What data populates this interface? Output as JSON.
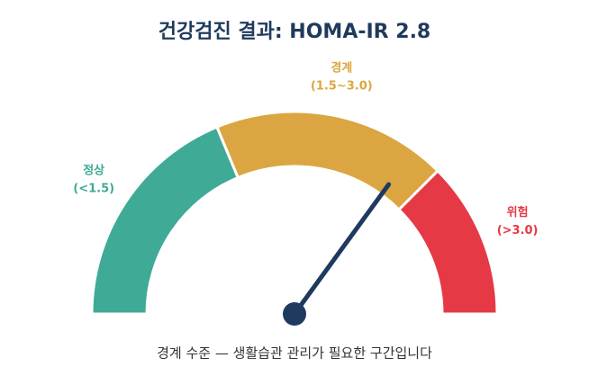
{
  "chart_data": {
    "type": "gauge",
    "title": "건강검진 결과: HOMA-IR 2.8",
    "value": 2.8,
    "range": [
      0,
      4
    ],
    "needle_color": "#1e3a5f",
    "bands": [
      {
        "name": "정상",
        "label": "(<1.5)",
        "start": 0,
        "end": 1.5,
        "color": "#3faa96"
      },
      {
        "name": "경계",
        "label": "(1.5~3.0)",
        "start": 1.5,
        "end": 3.0,
        "color": "#dba641"
      },
      {
        "name": "위험",
        "label": "(>3.0)",
        "start": 3.0,
        "end": 4,
        "color": "#e53946"
      }
    ],
    "caption": "경계 수준 — 생활습관 관리가 필요한 구간입니다"
  }
}
